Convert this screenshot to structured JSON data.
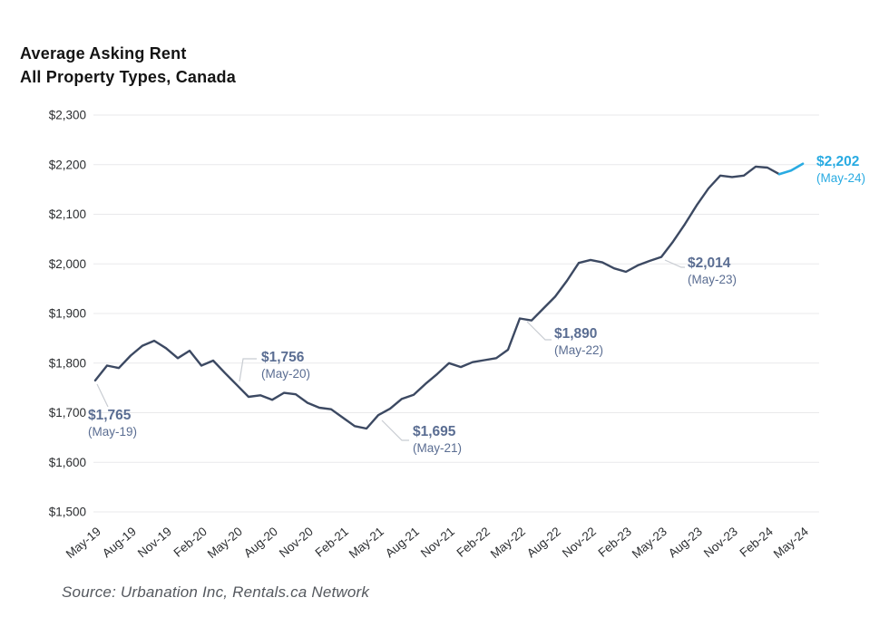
{
  "header": {
    "title": "Average Asking Rent",
    "subtitle": "All Property Types, Canada"
  },
  "footer": {
    "source": "Source: Urbanation Inc, Rentals.ca Network"
  },
  "chart_data": {
    "type": "line",
    "title": "Average Asking Rent",
    "subtitle": "All Property Types, Canada",
    "source": "Source: Urbanation Inc, Rentals.ca Network",
    "ylim": [
      1500,
      2300
    ],
    "ytick_step": 100,
    "ytick_labels": [
      "$1,500",
      "$1,600",
      "$1,700",
      "$1,800",
      "$1,900",
      "$2,000",
      "$2,100",
      "$2,200",
      "$2,300"
    ],
    "xtick_every": 3,
    "xtick_labels": [
      "May-19",
      "Aug-19",
      "Nov-19",
      "Feb-20",
      "May-20",
      "Aug-20",
      "Nov-20",
      "Feb-21",
      "May-21",
      "Aug-21",
      "Nov-21",
      "Feb-22",
      "May-22",
      "Aug-22",
      "Nov-22",
      "Feb-23",
      "May-23",
      "Aug-23",
      "Nov-23",
      "Feb-24",
      "May-24"
    ],
    "months": [
      "May-19",
      "Jun-19",
      "Jul-19",
      "Aug-19",
      "Sep-19",
      "Oct-19",
      "Nov-19",
      "Dec-19",
      "Jan-20",
      "Feb-20",
      "Mar-20",
      "Apr-20",
      "May-20",
      "Jun-20",
      "Jul-20",
      "Aug-20",
      "Sep-20",
      "Oct-20",
      "Nov-20",
      "Dec-20",
      "Jan-21",
      "Feb-21",
      "Mar-21",
      "Apr-21",
      "May-21",
      "Jun-21",
      "Jul-21",
      "Aug-21",
      "Sep-21",
      "Oct-21",
      "Nov-21",
      "Dec-21",
      "Jan-22",
      "Feb-22",
      "Mar-22",
      "Apr-22",
      "May-22",
      "Jun-22",
      "Jul-22",
      "Aug-22",
      "Sep-22",
      "Oct-22",
      "Nov-22",
      "Dec-22",
      "Jan-23",
      "Feb-23",
      "Mar-23",
      "Apr-23",
      "May-23",
      "Jun-23",
      "Jul-23",
      "Aug-23",
      "Sep-23",
      "Oct-23",
      "Nov-23",
      "Dec-23",
      "Jan-24",
      "Feb-24",
      "Mar-24",
      "Apr-24",
      "May-24"
    ],
    "values": [
      1765,
      1795,
      1790,
      1815,
      1835,
      1845,
      1830,
      1810,
      1825,
      1795,
      1805,
      1780,
      1756,
      1732,
      1735,
      1726,
      1740,
      1737,
      1720,
      1710,
      1707,
      1690,
      1673,
      1668,
      1695,
      1708,
      1728,
      1736,
      1758,
      1778,
      1800,
      1792,
      1802,
      1806,
      1810,
      1827,
      1890,
      1886,
      1910,
      1934,
      1966,
      2002,
      2008,
      2003,
      1991,
      1984,
      1997,
      2006,
      2014,
      2045,
      2080,
      2118,
      2152,
      2178,
      2175,
      2178,
      2196,
      2194,
      2181,
      2188,
      2202
    ],
    "highlight_start_index": 58,
    "annotations": [
      {
        "month": "May-19",
        "month_index": 0,
        "value": 1765,
        "value_label": "$1,765",
        "date_label": "(May-19)",
        "style": "slate"
      },
      {
        "month": "May-20",
        "month_index": 12,
        "value": 1756,
        "value_label": "$1,756",
        "date_label": "(May-20)",
        "style": "slate"
      },
      {
        "month": "May-21",
        "month_index": 24,
        "value": 1695,
        "value_label": "$1,695",
        "date_label": "(May-21)",
        "style": "slate"
      },
      {
        "month": "May-22",
        "month_index": 36,
        "value": 1890,
        "value_label": "$1,890",
        "date_label": "(May-22)",
        "style": "slate"
      },
      {
        "month": "May-23",
        "month_index": 48,
        "value": 2014,
        "value_label": "$2,014",
        "date_label": "(May-23)",
        "style": "slate"
      },
      {
        "month": "May-24",
        "month_index": 60,
        "value": 2202,
        "value_label": "$2,202",
        "date_label": "(May-24)",
        "style": "blue"
      }
    ],
    "legend": null,
    "grid": "horizontal",
    "colors": {
      "line": "#3c4962",
      "highlight": "#29abe2",
      "annotation_slate": "#5a6d92",
      "annotation_blue": "#29abe2",
      "grid": "#e9e9eb",
      "axis_text": "#2b2d30",
      "leader": "#c8ccd2"
    }
  }
}
